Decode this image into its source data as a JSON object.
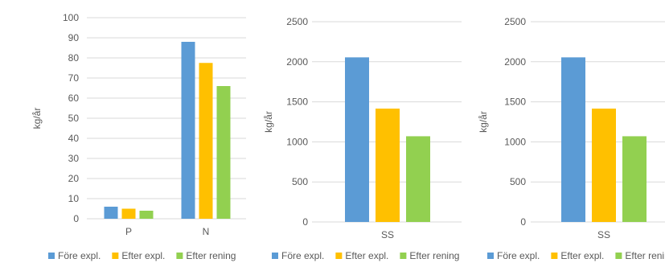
{
  "palette": {
    "blue": "#5B9BD5",
    "orange": "#FFC000",
    "green": "#92D050",
    "grid": "#D9D9D9",
    "text": "#595959"
  },
  "chart_data": [
    {
      "type": "bar",
      "ylabel": "kg/år",
      "xlabel": "",
      "ylim": [
        0,
        100
      ],
      "yticks": [
        0,
        10,
        20,
        30,
        40,
        50,
        60,
        70,
        80,
        90,
        100
      ],
      "grid": true,
      "legend": "bottom",
      "categories": [
        "P",
        "N"
      ],
      "series": [
        {
          "name": "Före expl.",
          "color": "#5B9BD5",
          "values": [
            6,
            88
          ]
        },
        {
          "name": "Efter expl.",
          "color": "#FFC000",
          "values": [
            5,
            77.5
          ]
        },
        {
          "name": "Efter rening",
          "color": "#92D050",
          "values": [
            4,
            66
          ]
        }
      ]
    },
    {
      "type": "bar",
      "ylabel": "kg/år",
      "xlabel": "",
      "ylim": [
        0,
        2500
      ],
      "yticks": [
        0,
        500,
        1000,
        1500,
        2000,
        2500
      ],
      "grid": true,
      "legend": "bottom",
      "categories": [
        "SS"
      ],
      "series": [
        {
          "name": "Före expl.",
          "color": "#5B9BD5",
          "values": [
            2055
          ]
        },
        {
          "name": "Efter expl.",
          "color": "#FFC000",
          "values": [
            1415
          ]
        },
        {
          "name": "Efter rening",
          "color": "#92D050",
          "values": [
            1070
          ]
        }
      ]
    },
    {
      "type": "bar",
      "ylabel": "kg/år",
      "xlabel": "",
      "ylim": [
        0,
        2500
      ],
      "yticks": [
        0,
        500,
        1000,
        1500,
        2000,
        2500
      ],
      "grid": true,
      "legend": "bottom",
      "categories": [
        "SS"
      ],
      "series": [
        {
          "name": "Före expl.",
          "color": "#5B9BD5",
          "values": [
            2055
          ]
        },
        {
          "name": "Efter expl.",
          "color": "#FFC000",
          "values": [
            1415
          ]
        },
        {
          "name": "Efter renin",
          "color": "#92D050",
          "values": [
            1070
          ]
        }
      ]
    }
  ]
}
